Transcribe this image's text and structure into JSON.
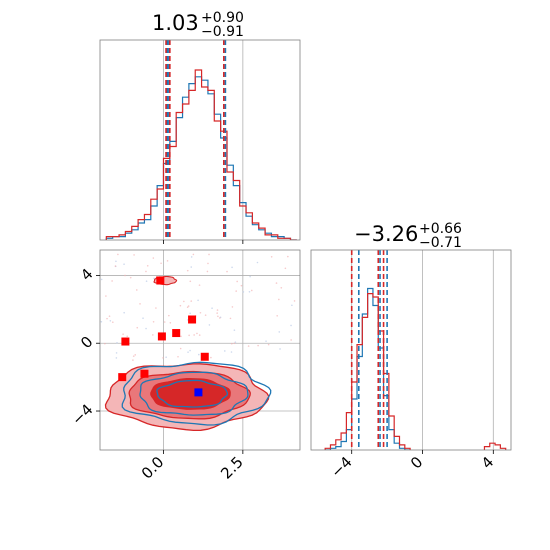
{
  "colors": {
    "blue": "#1f77b4",
    "red": "#d62728",
    "red_fill_outer": "#f4b6b7",
    "red_fill_mid": "#e9777a",
    "red_fill_inner": "#d62728",
    "marker_red": "#ff0000",
    "marker_blue": "#0000ff"
  },
  "chart_data": {
    "type": "corner",
    "parameters": 2,
    "panels": {
      "param1_hist": {
        "title_value": "1.03",
        "title_plus": "+0.90",
        "title_minus": "−0.91",
        "xlim": [
          -2.0,
          4.3
        ],
        "quantile_lines_blue": [
          0.12,
          0.17,
          1.95
        ],
        "quantile_lines_red": [
          0.08,
          0.2,
          1.9
        ],
        "series": [
          {
            "color": "blue",
            "bins_x": [
              -1.8,
              -1.6,
              -1.4,
              -1.2,
              -1.0,
              -0.8,
              -0.6,
              -0.4,
              -0.2,
              0.0,
              0.2,
              0.4,
              0.6,
              0.8,
              1.0,
              1.2,
              1.4,
              1.6,
              1.8,
              2.0,
              2.2,
              2.4,
              2.6,
              2.8,
              3.0,
              3.2,
              3.4,
              3.6,
              3.8,
              4.0
            ],
            "heights": [
              0.01,
              0.02,
              0.02,
              0.04,
              0.06,
              0.1,
              0.12,
              0.2,
              0.32,
              0.45,
              0.58,
              0.72,
              0.84,
              0.92,
              0.96,
              0.94,
              0.86,
              0.74,
              0.6,
              0.44,
              0.32,
              0.22,
              0.14,
              0.09,
              0.06,
              0.04,
              0.02,
              0.02,
              0.01,
              0.0
            ]
          },
          {
            "color": "red",
            "bins_x": [
              -1.8,
              -1.6,
              -1.4,
              -1.2,
              -1.0,
              -0.8,
              -0.6,
              -0.4,
              -0.2,
              0.0,
              0.2,
              0.4,
              0.6,
              0.8,
              1.0,
              1.2,
              1.4,
              1.6,
              1.8,
              2.0,
              2.2,
              2.4,
              2.6,
              2.8,
              3.0,
              3.2,
              3.4,
              3.6,
              3.8,
              4.0
            ],
            "heights": [
              0.02,
              0.02,
              0.03,
              0.05,
              0.08,
              0.12,
              0.15,
              0.24,
              0.3,
              0.48,
              0.55,
              0.75,
              0.8,
              0.88,
              1.0,
              0.9,
              0.88,
              0.7,
              0.64,
              0.4,
              0.35,
              0.2,
              0.16,
              0.1,
              0.07,
              0.03,
              0.03,
              0.01,
              0.01,
              0.0
            ]
          }
        ]
      },
      "joint": {
        "xlim": [
          -2.0,
          4.3
        ],
        "ylim": [
          -6.3,
          5.5
        ],
        "x_ticks": [
          "0.0",
          "2.5"
        ],
        "x_tick_values": [
          0.0,
          2.5
        ],
        "y_ticks": [
          "−4",
          "0",
          "4"
        ],
        "y_tick_values": [
          -4,
          0,
          4
        ],
        "markers_red": [
          [
            -1.2,
            0.1
          ],
          [
            -1.3,
            -2.0
          ],
          [
            -0.6,
            -1.8
          ],
          [
            -0.1,
            3.7
          ],
          [
            -0.05,
            0.4
          ],
          [
            0.4,
            0.6
          ],
          [
            0.9,
            1.4
          ],
          [
            1.3,
            -0.8
          ]
        ],
        "marker_blue": [
          1.1,
          -2.9
        ],
        "contour_center": [
          0.9,
          -3.0
        ],
        "contour_sigma": [
          1.0,
          0.6
        ]
      },
      "param2_hist": {
        "title_value": "−3.26",
        "title_plus": "+0.66",
        "title_minus": "−0.71",
        "xlim": [
          -6.3,
          5.0
        ],
        "x_ticks": [
          "−4",
          "0",
          "4"
        ],
        "x_tick_values": [
          -4,
          0,
          4
        ],
        "quantile_lines_blue": [
          -3.6,
          -2.4,
          -2.0
        ],
        "quantile_lines_red": [
          -4.0,
          -2.5,
          -2.2
        ],
        "series": [
          {
            "color": "blue",
            "bins_x": [
              -5.5,
              -5.2,
              -4.9,
              -4.6,
              -4.3,
              -4.0,
              -3.7,
              -3.4,
              -3.1,
              -2.8,
              -2.5,
              -2.2,
              -1.9,
              -1.6,
              -1.3,
              -1.0
            ],
            "heights": [
              0.0,
              0.01,
              0.02,
              0.05,
              0.12,
              0.3,
              0.55,
              0.8,
              0.95,
              0.85,
              0.6,
              0.32,
              0.12,
              0.04,
              0.01,
              0.0
            ]
          },
          {
            "color": "red",
            "bins_x": [
              -5.5,
              -5.2,
              -4.9,
              -4.6,
              -4.3,
              -4.0,
              -3.7,
              -3.4,
              -3.1,
              -2.8,
              -2.5,
              -2.2,
              -1.9,
              -1.6,
              -1.3,
              -1.0,
              3.5,
              3.8,
              4.1,
              4.4
            ],
            "heights": [
              0.01,
              0.03,
              0.06,
              0.1,
              0.22,
              0.4,
              0.62,
              0.78,
              0.92,
              0.9,
              0.7,
              0.45,
              0.2,
              0.08,
              0.03,
              0.01,
              0.02,
              0.04,
              0.03,
              0.01
            ]
          }
        ]
      }
    }
  }
}
